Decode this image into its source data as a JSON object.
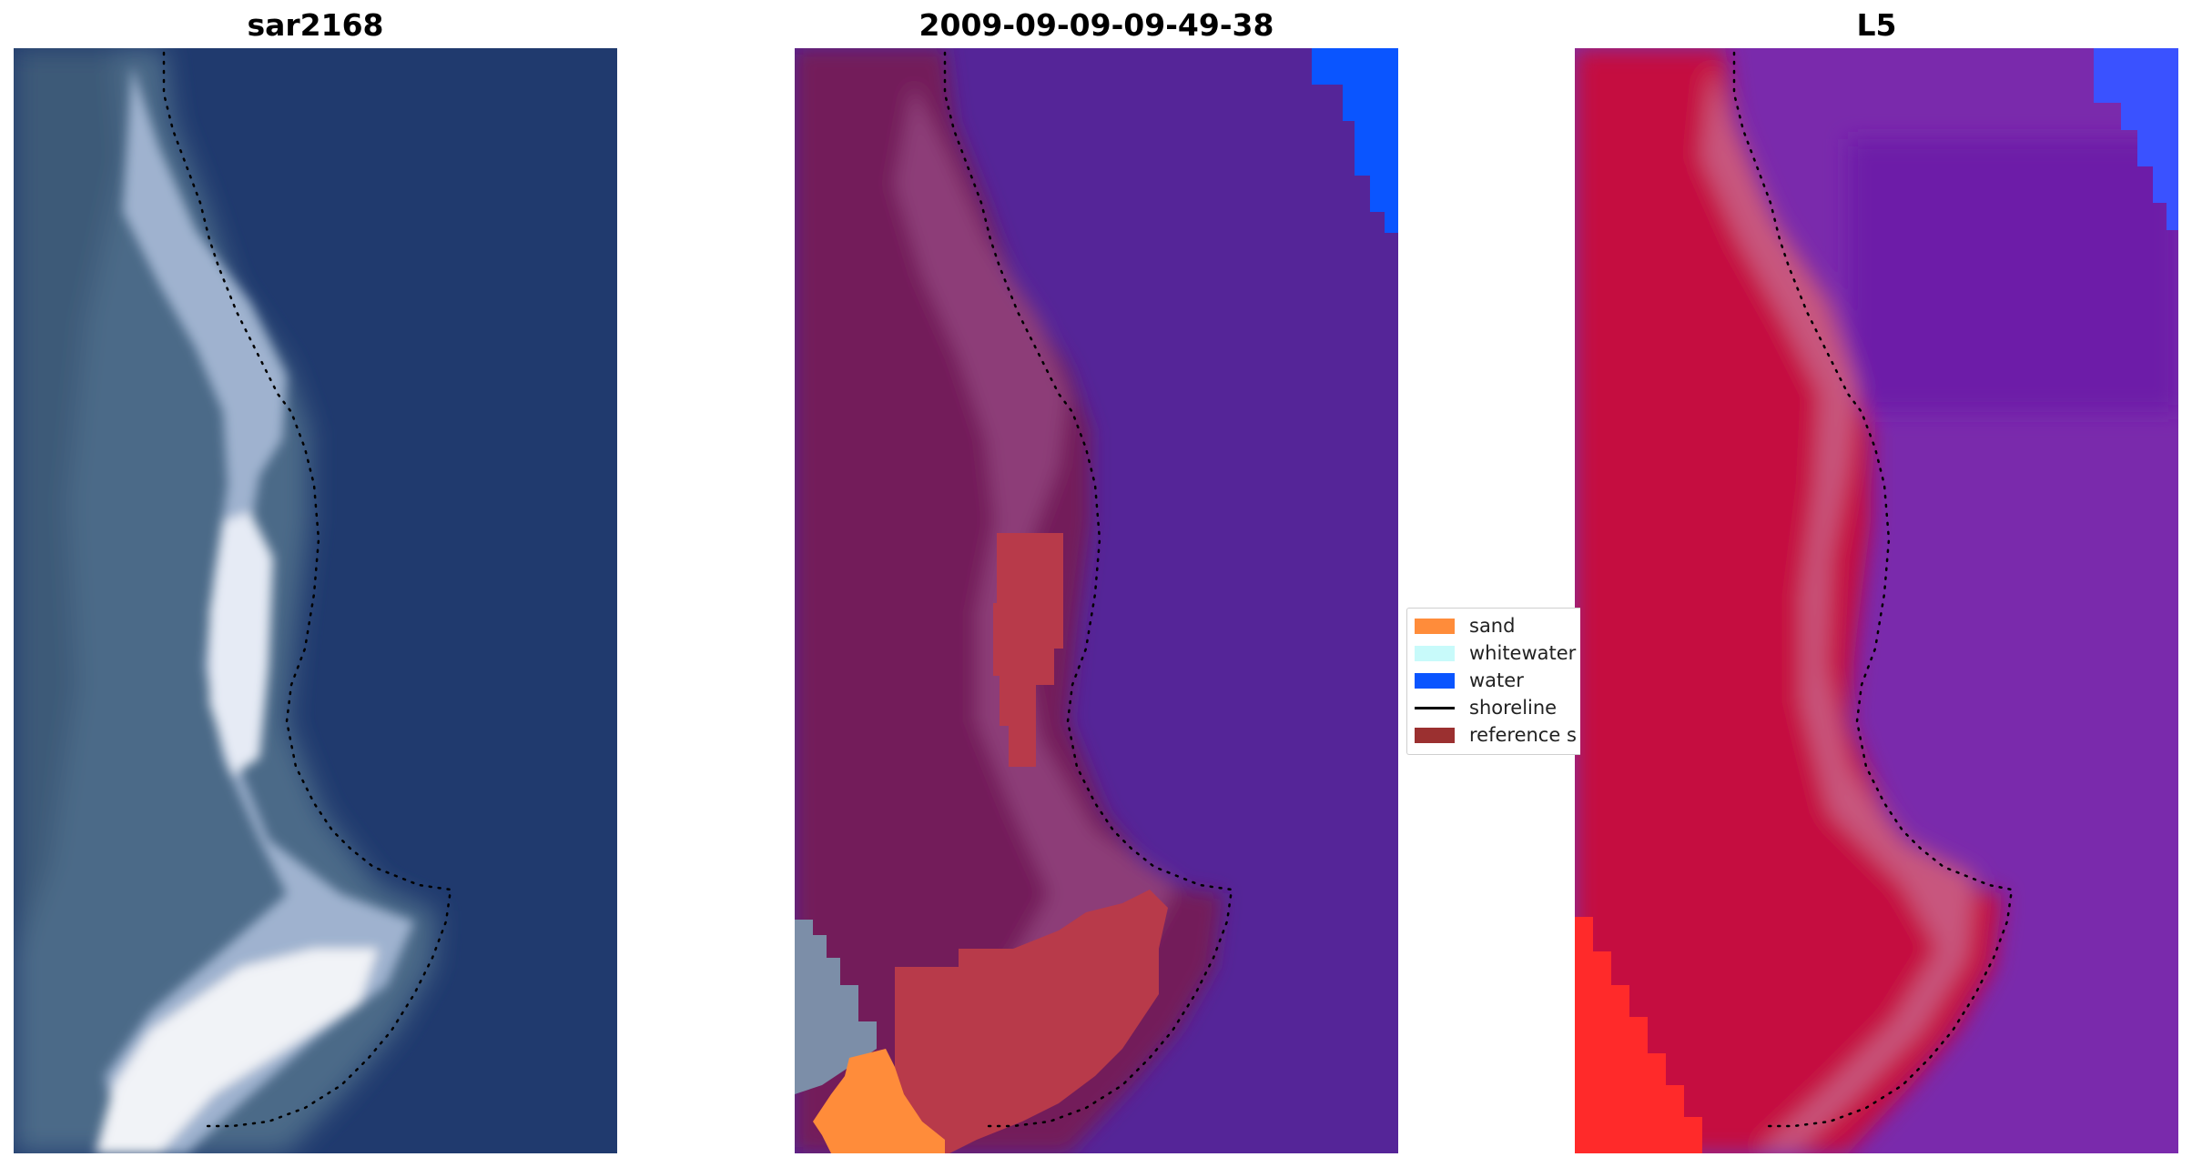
{
  "panels": {
    "rgb_title": "sar2168",
    "classified_title": "2009-09-09-09-49-38",
    "index_title": "L5"
  },
  "legend": {
    "items": [
      {
        "label": "sand",
        "color": "#ff8c3a",
        "kind": "patch"
      },
      {
        "label": "whitewater",
        "color": "#c8fafa",
        "kind": "patch"
      },
      {
        "label": "water",
        "color": "#0a55ff",
        "kind": "patch"
      },
      {
        "label": "shoreline",
        "color": "#000000",
        "kind": "line"
      },
      {
        "label": "reference s",
        "color": "#9b3030",
        "kind": "patch"
      }
    ]
  },
  "colors": {
    "rgb_water": "#203a6e",
    "rgb_land": "#4c6a88",
    "rgb_bright": "#e6ebf5",
    "cls_water": "#552598",
    "cls_land": "#731f5a",
    "cls_sand": "#ff8c3a",
    "cls_reference": "#b83a4a",
    "cls_waterclass": "#0a55ff",
    "idx_land": "#c51040",
    "idx_water": "#7a2aac",
    "idx_red": "#ff2a2a",
    "idx_blue": "#3a52ff",
    "shoreline": "#000000"
  }
}
